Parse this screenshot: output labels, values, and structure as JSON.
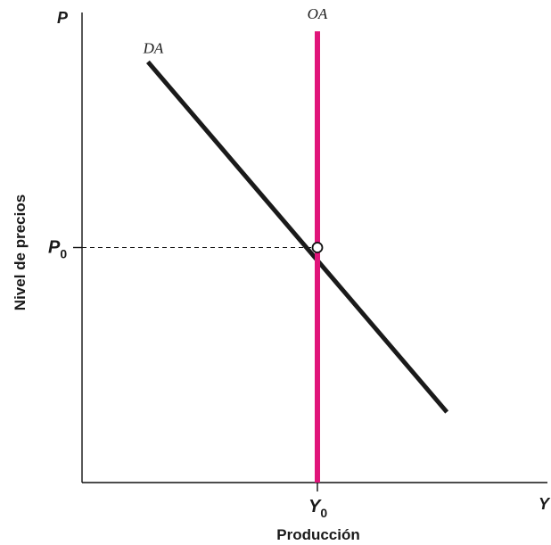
{
  "chart_data": {
    "type": "line",
    "title": "",
    "xlabel": "Producción",
    "ylabel": "Nivel de precios",
    "x_axis_symbol": "Y",
    "y_axis_symbol": "P",
    "x_ticks": [
      {
        "label": "Y",
        "subscript": "0",
        "value": 1
      }
    ],
    "y_ticks": [
      {
        "label": "P",
        "subscript": "0",
        "value": 1
      }
    ],
    "xlim": [
      0,
      2
    ],
    "ylim": [
      0,
      2
    ],
    "grid": false,
    "series": [
      {
        "name": "DA",
        "color": "#1a1a1a",
        "points": [
          [
            0.28,
            1.79
          ],
          [
            1.55,
            0.3
          ]
        ]
      },
      {
        "name": "OA",
        "color": "#e0157a",
        "points": [
          [
            1,
            0
          ],
          [
            1,
            1.92
          ]
        ]
      }
    ],
    "equilibrium": {
      "x": 1,
      "y": 1
    },
    "guides": [
      {
        "from": [
          0,
          1
        ],
        "to": [
          1,
          1
        ]
      }
    ]
  }
}
